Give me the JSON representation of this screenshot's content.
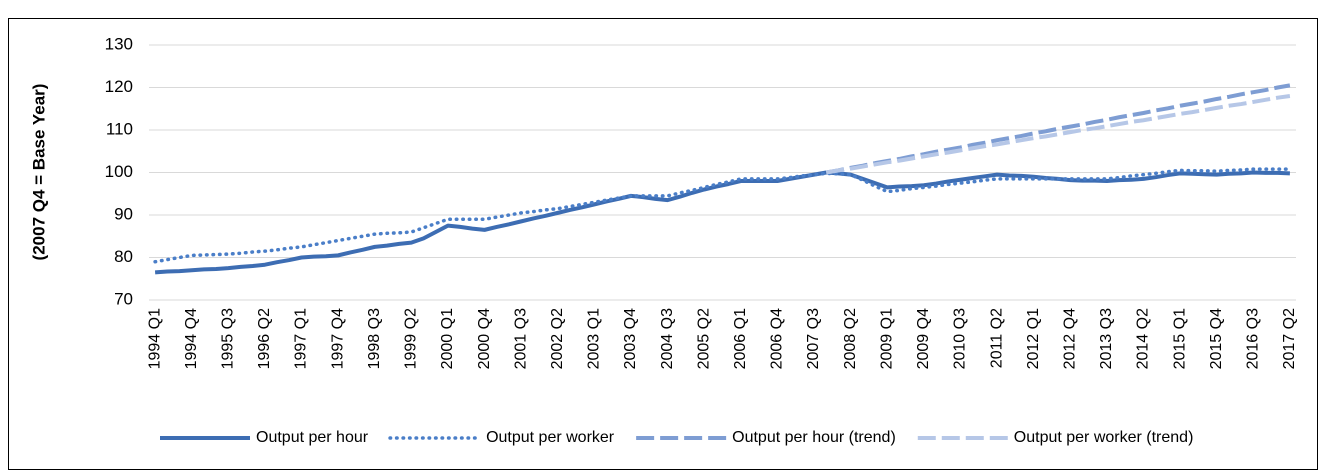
{
  "chart_data": {
    "type": "line",
    "ylabel": "(2007 Q4 = Base Year)",
    "ylim": [
      70,
      130
    ],
    "yticks": [
      70,
      80,
      90,
      100,
      110,
      120,
      130
    ],
    "grid": true,
    "legend": "bottom",
    "categories": [
      "1994 Q1",
      null,
      null,
      "1994 Q4",
      null,
      null,
      "1995 Q3",
      null,
      null,
      "1996 Q2",
      null,
      null,
      "1997 Q1",
      null,
      null,
      "1997 Q4",
      null,
      null,
      "1998 Q3",
      null,
      null,
      "1999 Q2",
      null,
      null,
      "2000 Q1",
      null,
      null,
      "2000 Q4",
      null,
      null,
      "2001 Q3",
      null,
      null,
      "2002 Q2",
      null,
      null,
      "2003 Q1",
      null,
      null,
      "2003 Q4",
      null,
      null,
      "2004 Q3",
      null,
      null,
      "2005 Q2",
      null,
      null,
      "2006 Q1",
      null,
      null,
      "2006 Q4",
      null,
      null,
      "2007 Q3",
      null,
      null,
      "2008 Q2",
      null,
      null,
      "2009 Q1",
      null,
      null,
      "2009 Q4",
      null,
      null,
      "2010 Q3",
      null,
      null,
      "2011 Q2",
      null,
      null,
      "2012 Q1",
      null,
      null,
      "2012 Q4",
      null,
      null,
      "2013 Q3",
      null,
      null,
      "2014 Q2",
      null,
      null,
      "2015 Q1",
      null,
      null,
      "2015 Q4",
      null,
      null,
      "2016 Q3",
      null,
      null,
      "2017 Q2"
    ],
    "series": [
      {
        "name": "Output per hour",
        "color": "#3d6db3",
        "values": [
          76.5,
          76.7,
          76.8,
          77,
          77.2,
          77.3,
          77.5,
          77.8,
          78.0,
          78.3,
          78.9,
          79.4,
          80,
          80.2,
          80.3,
          80.5,
          81.2,
          81.8,
          82.5,
          82.8,
          83.2,
          83.5,
          84.5,
          86,
          87.5,
          87.2,
          86.8,
          86.5,
          87.2,
          87.8,
          88.5,
          89.2,
          89.8,
          90.5,
          91.2,
          91.8,
          92.5,
          93.2,
          93.8,
          94.5,
          94.2,
          93.8,
          93.5,
          94.3,
          95.2,
          96,
          96.7,
          97.3,
          98,
          98,
          98,
          98,
          98.5,
          99,
          99.5,
          100,
          99.8,
          99.5,
          98.5,
          97.5,
          96.5,
          96.7,
          96.8,
          97,
          97.4,
          97.9,
          98.3,
          98.7,
          99.1,
          99.5,
          99.3,
          99.2,
          99,
          98.7,
          98.5,
          98.2,
          98.1,
          98.1,
          98,
          98.2,
          98.3,
          98.5,
          98.9,
          99.4,
          99.8,
          99.7,
          99.6,
          99.5,
          99.7,
          99.8,
          100,
          99.9,
          99.9,
          99.8
        ]
      },
      {
        "name": "Output per worker",
        "color": "#4a7ec8",
        "values": [
          79,
          79.5,
          80,
          80.5,
          80.6,
          80.7,
          80.8,
          81,
          81.3,
          81.5,
          81.8,
          82.2,
          82.5,
          83,
          83.5,
          84,
          84.5,
          85,
          85.5,
          85.7,
          85.8,
          86,
          87,
          88,
          89,
          89,
          89,
          89,
          89.5,
          90,
          90.5,
          90.8,
          91.2,
          91.5,
          92,
          92.5,
          93,
          93.5,
          94,
          94.5,
          94.5,
          94.5,
          94.5,
          95.2,
          95.8,
          96.5,
          97.2,
          97.8,
          98.5,
          98.5,
          98.5,
          98.5,
          98.8,
          99.2,
          99.5,
          99.8,
          99.7,
          99.5,
          98.2,
          96.8,
          95.5,
          95.8,
          96.2,
          96.5,
          96.8,
          97.2,
          97.5,
          97.8,
          98.2,
          98.5,
          98.5,
          98.5,
          98.5,
          98.5,
          98.5,
          98.5,
          98.5,
          98.5,
          98.5,
          98.8,
          99.2,
          99.5,
          99.8,
          100.2,
          100.5,
          100.4,
          100.4,
          100.3,
          100.5,
          100.6,
          100.8,
          100.8,
          100.8,
          100.8
        ]
      },
      {
        "name": "Output per hour (trend)",
        "color": "#7e9dd3",
        "values": [
          null,
          null,
          null,
          null,
          null,
          null,
          null,
          null,
          null,
          null,
          null,
          null,
          null,
          null,
          null,
          null,
          null,
          null,
          null,
          null,
          null,
          null,
          null,
          null,
          null,
          null,
          null,
          null,
          null,
          null,
          null,
          null,
          null,
          null,
          null,
          null,
          null,
          null,
          null,
          null,
          null,
          null,
          null,
          null,
          null,
          null,
          null,
          null,
          null,
          null,
          null,
          null,
          null,
          null,
          null,
          100,
          100.5,
          101.1,
          101.6,
          102.2,
          102.7,
          103.2,
          103.8,
          104.3,
          104.9,
          105.4,
          105.9,
          106.5,
          107.0,
          107.6,
          108.1,
          108.6,
          109.2,
          109.7,
          110.3,
          110.8,
          111.3,
          111.9,
          112.4,
          113.0,
          113.5,
          114.0,
          114.6,
          115.1,
          115.7,
          116.2,
          116.7,
          117.3,
          117.8,
          118.4,
          118.9,
          119.4,
          120.0,
          120.5
        ]
      },
      {
        "name": "Output per worker (trend)",
        "color": "#b6c7e7",
        "values": [
          null,
          null,
          null,
          null,
          null,
          null,
          null,
          null,
          null,
          null,
          null,
          null,
          null,
          null,
          null,
          null,
          null,
          null,
          null,
          null,
          null,
          null,
          null,
          null,
          null,
          null,
          null,
          null,
          null,
          null,
          null,
          null,
          null,
          null,
          null,
          null,
          null,
          null,
          null,
          null,
          null,
          null,
          null,
          null,
          null,
          null,
          null,
          null,
          null,
          null,
          null,
          null,
          null,
          null,
          null,
          100,
          100.5,
          100.9,
          101.4,
          101.9,
          102.4,
          102.8,
          103.3,
          103.8,
          104.3,
          104.7,
          105.2,
          105.7,
          106.2,
          106.6,
          107.1,
          107.6,
          108.1,
          108.5,
          109.0,
          109.5,
          110.0,
          110.4,
          110.9,
          111.4,
          111.9,
          112.3,
          112.8,
          113.3,
          113.8,
          114.2,
          114.7,
          115.2,
          115.7,
          116.1,
          116.6,
          117.1,
          117.6,
          118.0
        ]
      }
    ]
  }
}
